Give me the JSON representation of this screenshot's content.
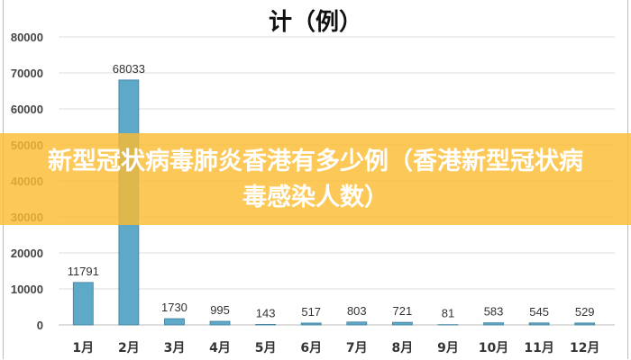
{
  "chart_data": {
    "type": "bar",
    "title": "计（例）",
    "categories": [
      "1月",
      "2月",
      "3月",
      "4月",
      "5月",
      "6月",
      "7月",
      "8月",
      "9月",
      "10月",
      "11月",
      "12月"
    ],
    "values": [
      11791,
      68033,
      1730,
      995,
      143,
      517,
      803,
      721,
      81,
      583,
      545,
      529
    ],
    "ylim": [
      0,
      80000
    ],
    "yticks": [
      0,
      10000,
      20000,
      30000,
      40000,
      50000,
      60000,
      70000,
      80000
    ],
    "grid": true,
    "bar_color": "#5ea8c8"
  },
  "banner": {
    "text": "新型冠状病毒肺炎香港有多少例（香港新型冠状病毒感染人数）",
    "color": "#fbbc32"
  }
}
